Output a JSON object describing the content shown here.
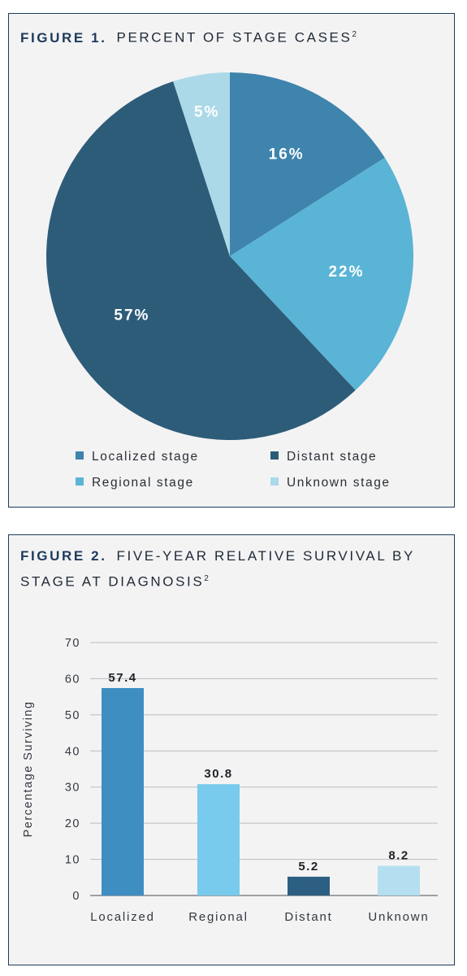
{
  "figure1": {
    "label": "FIGURE 1.",
    "title": "PERCENT OF STAGE CASES",
    "superscript": "2"
  },
  "figure2": {
    "label": "FIGURE 2.",
    "title": "FIVE-YEAR RELATIVE SURVIVAL BY STAGE AT DIAGNOSIS",
    "superscript": "2"
  },
  "chart_data": [
    {
      "type": "pie",
      "title": "PERCENT OF STAGE CASES",
      "legend_position": "bottom",
      "slices": [
        {
          "name": "Localized stage",
          "value": 16,
          "label": "16%",
          "color": "#3e84ad"
        },
        {
          "name": "Regional stage",
          "value": 22,
          "label": "22%",
          "color": "#5ab4d6"
        },
        {
          "name": "Distant stage",
          "value": 57,
          "label": "57%",
          "color": "#2d5c79"
        },
        {
          "name": "Unknown stage",
          "value": 5,
          "label": "5%",
          "color": "#acd9e8"
        }
      ],
      "legend_order": [
        "Localized stage",
        "Distant stage",
        "Regional stage",
        "Unknown stage"
      ]
    },
    {
      "type": "bar",
      "title": "FIVE-YEAR RELATIVE SURVIVAL BY STAGE AT DIAGNOSIS",
      "xlabel": "",
      "ylabel": "Percentage Surviving",
      "ylim": [
        0,
        70
      ],
      "yticks": [
        0,
        10,
        20,
        30,
        40,
        50,
        60,
        70
      ],
      "grid": true,
      "categories": [
        "Localized",
        "Regional",
        "Distant",
        "Unknown"
      ],
      "values": [
        57.4,
        30.8,
        5.2,
        8.2
      ],
      "value_labels": [
        "57.4",
        "30.8",
        "5.2",
        "8.2"
      ],
      "colors": [
        "#3e8ec2",
        "#78cbec",
        "#2d5f82",
        "#b4dff0"
      ]
    }
  ]
}
